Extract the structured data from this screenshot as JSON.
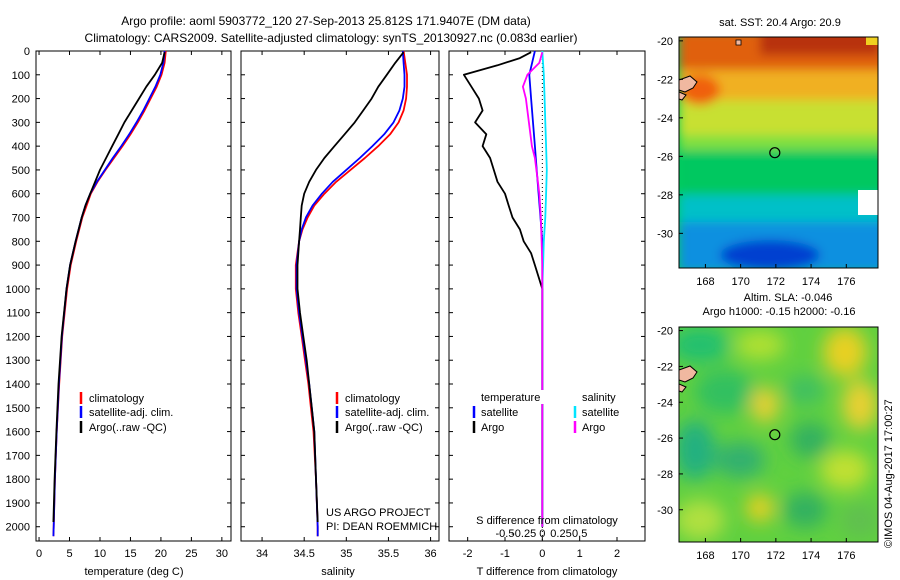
{
  "header": {
    "line1": "Argo profile: aoml 5903772_120 27-Sep-2013 25.812S 171.9407E (DM data)",
    "line2": "Climatology: CARS2009. Satellite-adjusted climatology: synTS_20130927.nc (0.083d earlier)"
  },
  "colors": {
    "climatology": "#ff0000",
    "satellite": "#0000ff",
    "argo": "#000000",
    "sal_satellite": "#00e5ff",
    "sal_argo": "#ff00ff"
  },
  "chart_data": [
    {
      "type": "line",
      "id": "temperature",
      "xlabel": "temperature (deg C)",
      "ylabel": "",
      "xlim": [
        -0.5,
        31.5
      ],
      "ylim": [
        2060,
        0
      ],
      "xticks": [
        0,
        5,
        10,
        15,
        20,
        25,
        30
      ],
      "yticks": [
        0,
        100,
        200,
        300,
        400,
        500,
        600,
        700,
        800,
        900,
        1000,
        1100,
        1200,
        1300,
        1400,
        1500,
        1600,
        1700,
        1800,
        1900,
        2000
      ],
      "legend": [
        "climatology",
        "satellite-adj. clim.",
        "Argo(..raw -QC)"
      ],
      "legend_position": "lower-center",
      "series": [
        {
          "name": "climatology",
          "color": "#ff0000",
          "depth": [
            0,
            50,
            100,
            150,
            200,
            250,
            300,
            350,
            400,
            450,
            500,
            550,
            600,
            650,
            700,
            800,
            900,
            1000,
            1200,
            1400,
            1600,
            1800,
            2000,
            2040
          ],
          "values": [
            20.8,
            20.6,
            20.1,
            19.3,
            18.3,
            17.3,
            16.2,
            15.0,
            13.7,
            12.3,
            10.9,
            9.6,
            8.5,
            7.8,
            7.1,
            6.1,
            5.2,
            4.6,
            3.8,
            3.3,
            2.9,
            2.6,
            2.4,
            2.35
          ]
        },
        {
          "name": "satellite-adj. clim.",
          "color": "#0000ff",
          "depth": [
            0,
            50,
            100,
            150,
            200,
            250,
            300,
            350,
            400,
            450,
            500,
            550,
            600,
            650,
            700,
            800,
            900,
            1000,
            1200,
            1400,
            1600,
            1800,
            2000,
            2040
          ],
          "values": [
            20.6,
            20.4,
            19.9,
            19.1,
            18.1,
            17.1,
            16.0,
            14.8,
            13.5,
            12.1,
            10.8,
            9.5,
            8.4,
            7.6,
            7.0,
            6.0,
            5.1,
            4.5,
            3.75,
            3.25,
            2.9,
            2.6,
            2.4,
            2.35
          ]
        },
        {
          "name": "Argo(..raw -QC)",
          "color": "#000000",
          "depth": [
            5,
            50,
            100,
            150,
            200,
            250,
            300,
            350,
            400,
            450,
            500,
            550,
            600,
            650,
            700,
            800,
            900,
            1000,
            1200,
            1400,
            1600,
            1800,
            1980
          ],
          "values": [
            20.6,
            20.2,
            19.0,
            17.6,
            16.4,
            15.2,
            14.0,
            13.0,
            12.0,
            11.0,
            10.0,
            9.2,
            8.4,
            7.6,
            7.0,
            6.0,
            5.1,
            4.5,
            3.7,
            3.2,
            2.85,
            2.55,
            2.35
          ]
        }
      ]
    },
    {
      "type": "line",
      "id": "salinity",
      "xlabel": "salinity",
      "xlim": [
        33.75,
        36.1
      ],
      "ylim": [
        2060,
        0
      ],
      "xticks": [
        34,
        34.5,
        35,
        35.5,
        36
      ],
      "legend": [
        "climatology",
        "satellite-adj. clim.",
        "Argo(..raw -QC)"
      ],
      "legend_position": "lower-center",
      "annotation": [
        "US ARGO PROJECT",
        "PI: DEAN ROEMMICH"
      ],
      "series": [
        {
          "name": "climatology",
          "color": "#ff0000",
          "depth": [
            0,
            50,
            100,
            150,
            200,
            250,
            300,
            350,
            400,
            450,
            500,
            550,
            600,
            650,
            700,
            750,
            800,
            900,
            1000,
            1100,
            1200,
            1300,
            1400,
            1500,
            1600,
            1800,
            2000,
            2040
          ],
          "values": [
            35.68,
            35.7,
            35.72,
            35.72,
            35.71,
            35.68,
            35.62,
            35.52,
            35.38,
            35.22,
            35.05,
            34.88,
            34.74,
            34.62,
            34.54,
            34.48,
            34.44,
            34.4,
            34.4,
            34.43,
            34.47,
            34.51,
            34.55,
            34.58,
            34.61,
            34.64,
            34.66,
            34.66
          ]
        },
        {
          "name": "satellite-adj. clim.",
          "color": "#0000ff",
          "depth": [
            0,
            50,
            100,
            150,
            200,
            250,
            300,
            350,
            400,
            450,
            500,
            550,
            600,
            650,
            700,
            750,
            800,
            900,
            1000,
            1100,
            1200,
            1300,
            1400,
            1500,
            1600,
            1800,
            2000,
            2040
          ],
          "values": [
            35.67,
            35.68,
            35.69,
            35.69,
            35.67,
            35.63,
            35.56,
            35.45,
            35.31,
            35.16,
            35.0,
            34.84,
            34.71,
            34.6,
            34.52,
            34.47,
            34.44,
            34.41,
            34.41,
            34.44,
            34.48,
            34.52,
            34.56,
            34.59,
            34.62,
            34.64,
            34.66,
            34.66
          ]
        },
        {
          "name": "Argo(..raw -QC)",
          "color": "#000000",
          "depth": [
            5,
            50,
            100,
            150,
            200,
            250,
            300,
            350,
            400,
            450,
            500,
            550,
            600,
            650,
            700,
            750,
            800,
            900,
            1000,
            1100,
            1200,
            1300,
            1400,
            1500,
            1600,
            1800,
            1980
          ],
          "values": [
            35.68,
            35.58,
            35.48,
            35.38,
            35.3,
            35.2,
            35.1,
            34.98,
            34.86,
            34.74,
            34.64,
            34.56,
            34.5,
            34.47,
            34.46,
            34.45,
            34.44,
            34.42,
            34.42,
            34.45,
            34.49,
            34.53,
            34.56,
            34.59,
            34.62,
            34.64,
            34.66
          ]
        }
      ]
    },
    {
      "type": "line",
      "id": "differences",
      "xlabel": "T difference from climatology",
      "xlabel_top": "S difference from climatology",
      "xlim": [
        -2.5,
        2.75
      ],
      "ylim": [
        2060,
        0
      ],
      "xticks": [
        -2,
        -1,
        0,
        1,
        2
      ],
      "xticks_sal": [
        "-0.5",
        "-0.25",
        "0",
        "0.25",
        "0.5"
      ],
      "xticks_sal_values": [
        -0.5,
        -0.25,
        0,
        0.25,
        0.5
      ],
      "legend_temperature": {
        "title": "temperature",
        "items": [
          "satellite",
          "Argo"
        ]
      },
      "legend_salinity": {
        "title": "salinity",
        "items": [
          "satellite",
          "Argo"
        ]
      },
      "legend_position": "lower-center",
      "series": [
        {
          "name": "temperature satellite",
          "color": "#0000ff",
          "depth": [
            0,
            100,
            200,
            300,
            400,
            500,
            600,
            700,
            800,
            900,
            1000,
            1200,
            1500,
            2000
          ],
          "values": [
            -0.2,
            -0.35,
            -0.3,
            -0.25,
            -0.2,
            -0.15,
            -0.1,
            -0.05,
            0.0,
            0.0,
            0.0,
            0.0,
            0.0,
            0.0
          ]
        },
        {
          "name": "temperature Argo",
          "color": "#000000",
          "depth": [
            5,
            30,
            60,
            100,
            150,
            200,
            250,
            300,
            350,
            400,
            450,
            500,
            550,
            600,
            650,
            700,
            750,
            800,
            850,
            900,
            950,
            1000,
            1100,
            1200,
            1500,
            2000
          ],
          "values": [
            -0.3,
            -0.6,
            -1.2,
            -2.1,
            -1.9,
            -1.7,
            -1.6,
            -1.8,
            -1.5,
            -1.6,
            -1.4,
            -1.3,
            -1.2,
            -1.0,
            -0.9,
            -0.8,
            -0.6,
            -0.5,
            -0.3,
            -0.2,
            -0.1,
            0.0,
            0.0,
            0.0,
            0.0,
            0.0
          ]
        },
        {
          "name": "salinity satellite",
          "color": "#00e5ff",
          "depth": [
            0,
            100,
            200,
            300,
            400,
            500,
            600,
            700,
            800,
            900,
            1000,
            1200,
            1500,
            2000
          ],
          "values": [
            0.0,
            0.02,
            0.03,
            0.04,
            0.05,
            0.06,
            0.05,
            0.04,
            0.02,
            0.01,
            0.0,
            0.0,
            0.0,
            0.0
          ]
        },
        {
          "name": "salinity Argo",
          "color": "#ff00ff",
          "depth": [
            5,
            50,
            100,
            150,
            200,
            250,
            300,
            350,
            400,
            450,
            500,
            550,
            600,
            650,
            700,
            800,
            900,
            1000,
            1200,
            2000
          ],
          "values": [
            0.0,
            -0.04,
            -0.2,
            -0.26,
            -0.22,
            -0.2,
            -0.18,
            -0.16,
            -0.14,
            -0.1,
            -0.08,
            -0.06,
            -0.04,
            -0.03,
            -0.02,
            -0.01,
            0.0,
            0.0,
            0.0,
            0.0
          ]
        }
      ]
    },
    {
      "type": "heatmap",
      "id": "sst-map",
      "title": "sat. SST: 20.4  Argo: 20.9",
      "xlim": [
        166.5,
        177.8
      ],
      "ylim": [
        -31.8,
        -19.8
      ],
      "xticks": [
        168,
        170,
        172,
        174,
        176
      ],
      "yticks": [
        -20,
        -22,
        -24,
        -26,
        -28,
        -30
      ],
      "field": "SST (higher north, lower south)",
      "marker": {
        "lon": 171.94,
        "lat": -25.81
      }
    },
    {
      "type": "heatmap",
      "id": "sla-map",
      "title": [
        "Altim. SLA: -0.046",
        "Argo h1000: -0.15 h2000: -0.16"
      ],
      "xlim": [
        166.5,
        177.8
      ],
      "ylim": [
        -31.8,
        -19.8
      ],
      "xticks": [
        168,
        170,
        172,
        174,
        176
      ],
      "yticks": [
        -20,
        -22,
        -24,
        -26,
        -28,
        -30
      ],
      "field": "SLA",
      "marker": {
        "lon": 171.94,
        "lat": -25.81
      }
    }
  ],
  "footer": {
    "stamp": "©IMOS 04-Aug-2017 17:00:27"
  }
}
